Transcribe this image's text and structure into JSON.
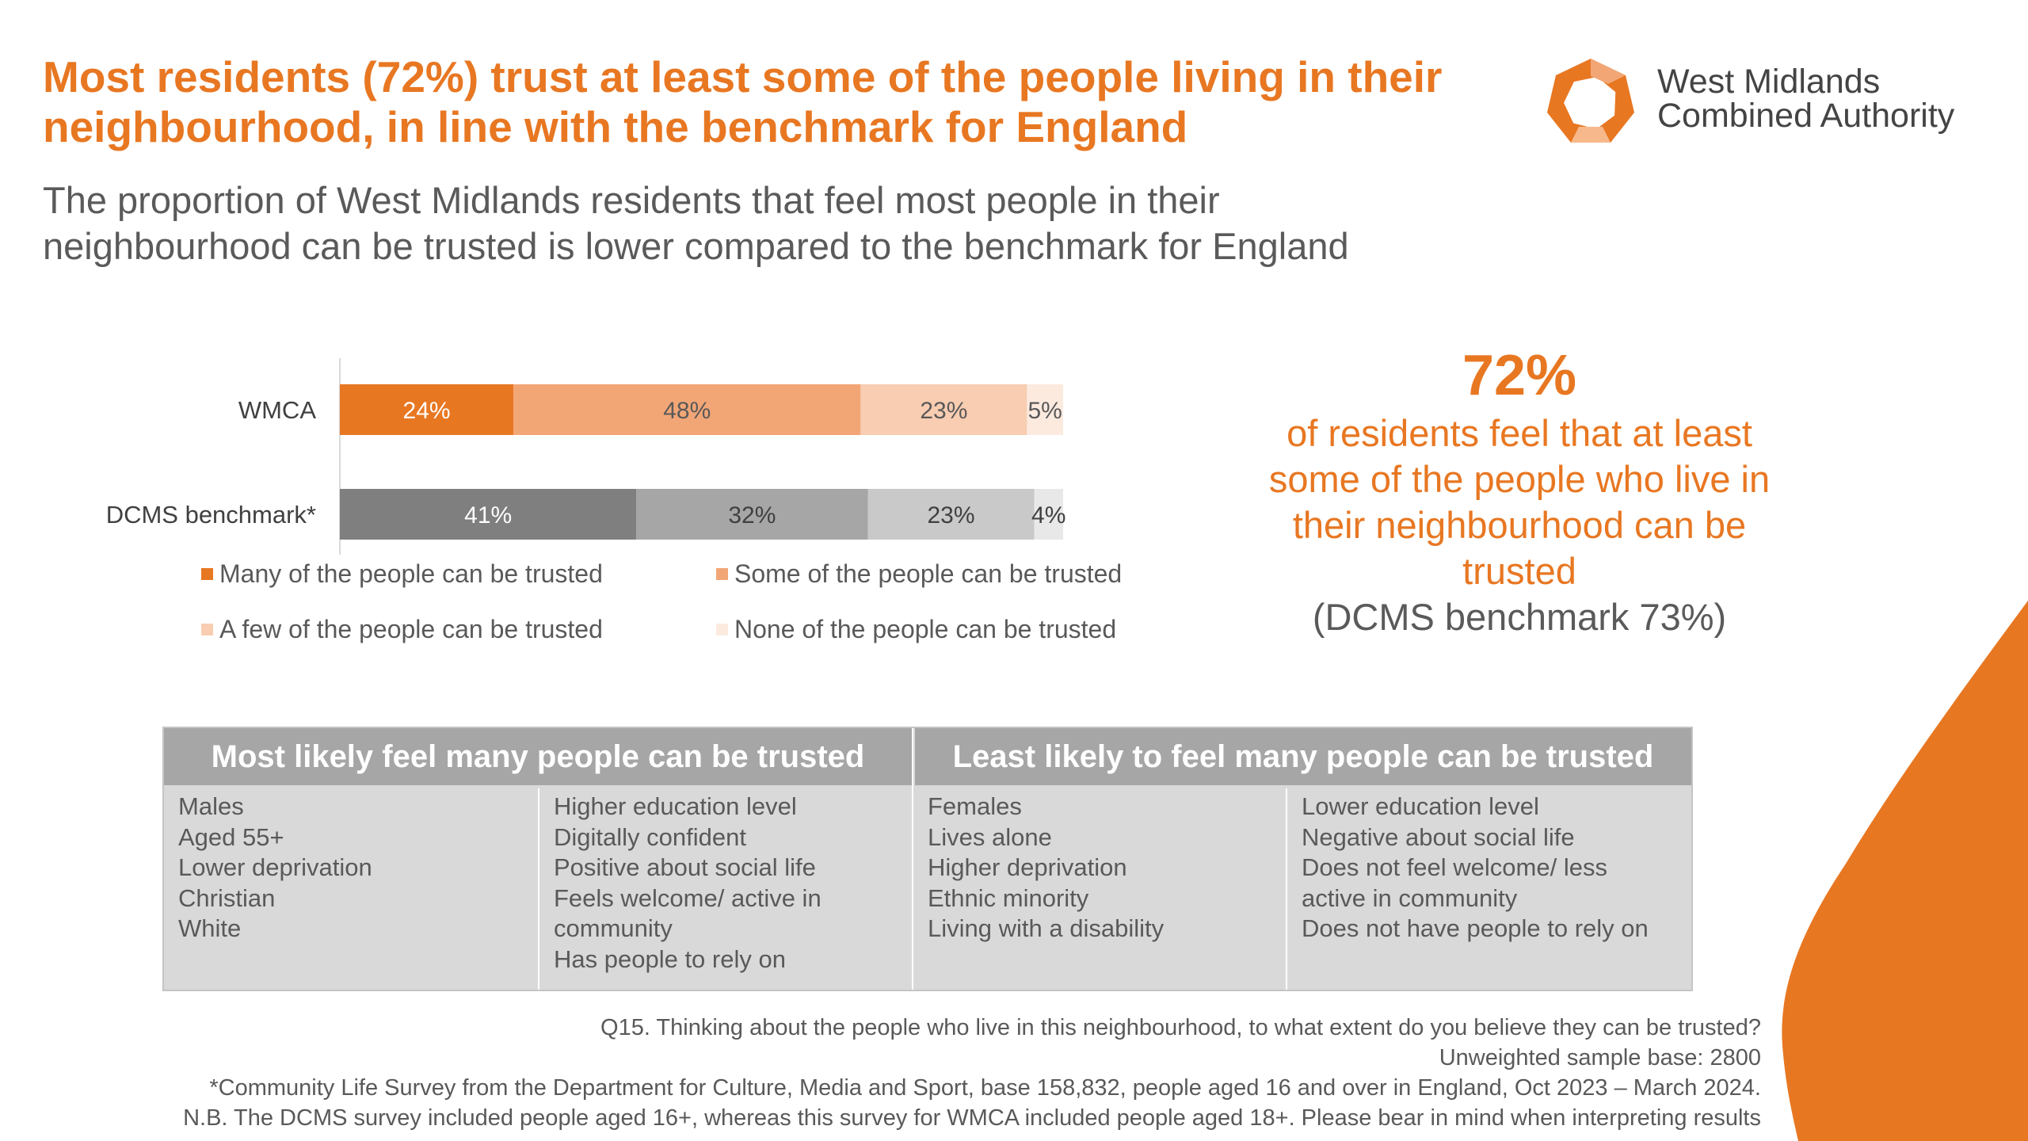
{
  "colors": {
    "accent": "#E87722",
    "gray_text": "#595959",
    "series": [
      "#E87722",
      "#F2A676",
      "#F8CDB1",
      "#FCEADF"
    ],
    "benchmark_series": [
      "#7F7F7F",
      "#A6A6A6",
      "#C9C9C9",
      "#E8E8E8"
    ]
  },
  "logo": {
    "line1": "West Midlands",
    "line2": "Combined Authority"
  },
  "title": "Most residents (72%) trust at least some of the people living in their neighbourhood, in line with the benchmark for England",
  "subtitle": "The proportion of West Midlands residents that feel most people in their neighbourhood can be trusted is lower compared to the benchmark for England",
  "callout": {
    "value": "72%",
    "description": "of residents feel that at least some of the people who live in their neighbourhood can be trusted",
    "benchmark": "(DCMS benchmark 73%)"
  },
  "chart_data": {
    "type": "bar",
    "orientation": "horizontal",
    "stacked": true,
    "percent_stacked": true,
    "categories": [
      "WMCA",
      "DCMS benchmark*"
    ],
    "series": [
      {
        "name": "Many of the people can be trusted",
        "values": [
          24,
          41
        ]
      },
      {
        "name": "Some of the people can be trusted",
        "values": [
          48,
          32
        ]
      },
      {
        "name": "A few of the people can be trusted",
        "values": [
          23,
          23
        ]
      },
      {
        "name": "None of the people can be trusted",
        "values": [
          5,
          4
        ]
      }
    ],
    "value_labels": [
      [
        "24%",
        "48%",
        "23%",
        "5%"
      ],
      [
        "41%",
        "32%",
        "23%",
        "4%"
      ]
    ],
    "xlim": [
      0,
      100
    ],
    "legend_position": "bottom",
    "grid": false
  },
  "table": {
    "headers": [
      "Most likely feel many people can be trusted",
      "Least likely to feel many people can be trusted"
    ],
    "columns": [
      [
        "Males",
        "Aged 55+",
        "Lower deprivation",
        "Christian",
        "White"
      ],
      [
        "Higher education level",
        "Digitally confident",
        "Positive about social life",
        "Feels welcome/ active in community",
        "Has people to rely on"
      ],
      [
        "Females",
        "Lives alone",
        "Higher deprivation",
        "Ethnic minority",
        "Living with a disability"
      ],
      [
        "Lower education level",
        "Negative about social life",
        "Does not feel welcome/ less active in community",
        "Does not have people to rely on"
      ]
    ]
  },
  "footnotes": {
    "question": "Q15. Thinking about the people who live in this neighbourhood, to what extent do you believe they can be trusted?",
    "base": "Unweighted sample base: 2800",
    "source": "*Community Life Survey from the Department for Culture, Media and Sport, base 158,832, people aged 16 and over in England, Oct 2023 – March 2024.",
    "note": "N.B. The DCMS survey included people aged 16+, whereas this survey for WMCA included people aged 18+. Please bear in mind when interpreting results"
  }
}
